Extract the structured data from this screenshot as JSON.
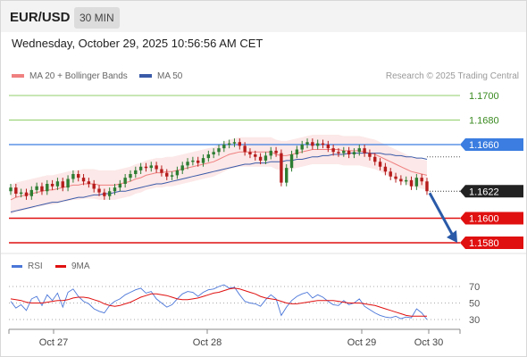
{
  "header": {
    "symbol": "EUR/USD",
    "timeframe": "30 MIN"
  },
  "datetime": "Wednesday, October 29, 2025 10:56:56 AM CET",
  "credit": "Research © 2025 Trading Central",
  "legend": {
    "ma20": "MA 20 + Bollinger Bands",
    "ma50": "MA 50",
    "rsi": "RSI",
    "rsi_ma": "9MA"
  },
  "colors": {
    "ma20": "#f08080",
    "ma50": "#3a5aa8",
    "resistance": "#8fcf6a",
    "pivot": "#3b7de0",
    "support": "#e01010",
    "rsi": "#4a76d8",
    "rsi_ma": "#e01010",
    "candle_up": "#2e7d32",
    "candle_down": "#b71c1c",
    "arrow": "#2a5aa8"
  },
  "chart_data": [
    {
      "type": "line",
      "subtype": "candlestick",
      "x_ticks": [
        "Oct 27",
        "Oct 28",
        "Oct 29",
        "Oct 30"
      ],
      "price_levels": [
        {
          "value": 1.17,
          "label": "1.1700",
          "kind": "resistance"
        },
        {
          "value": 1.168,
          "label": "1.1680",
          "kind": "resistance"
        },
        {
          "value": 1.166,
          "label": "1.1660",
          "kind": "pivot"
        },
        {
          "value": 1.1622,
          "label": "1.1622",
          "kind": "last"
        },
        {
          "value": 1.16,
          "label": "1.1600",
          "kind": "support"
        },
        {
          "value": 1.158,
          "label": "1.1580",
          "kind": "support"
        }
      ],
      "close": [
        1.1625,
        1.162,
        1.1621,
        1.1618,
        1.1623,
        1.1626,
        1.1622,
        1.1628,
        1.1626,
        1.163,
        1.1625,
        1.1632,
        1.1636,
        1.1633,
        1.163,
        1.1628,
        1.1624,
        1.1621,
        1.1618,
        1.1622,
        1.1625,
        1.1628,
        1.1633,
        1.1636,
        1.1639,
        1.1642,
        1.1641,
        1.1643,
        1.164,
        1.1637,
        1.1634,
        1.1635,
        1.1639,
        1.1643,
        1.1646,
        1.1647,
        1.1645,
        1.1649,
        1.1652,
        1.1654,
        1.1657,
        1.166,
        1.1661,
        1.1662,
        1.1659,
        1.1654,
        1.1652,
        1.165,
        1.1647,
        1.1651,
        1.1655,
        1.1653,
        1.1629,
        1.1641,
        1.1652,
        1.1656,
        1.166,
        1.1662,
        1.1659,
        1.1661,
        1.166,
        1.1657,
        1.1654,
        1.1653,
        1.1655,
        1.1652,
        1.1654,
        1.1657,
        1.1653,
        1.165,
        1.1646,
        1.1642,
        1.1638,
        1.1634,
        1.1632,
        1.163,
        1.1631,
        1.1626,
        1.1633,
        1.163,
        1.1622
      ],
      "ma20": [
        1.1615,
        1.1617,
        1.1618,
        1.1619,
        1.162,
        1.1621,
        1.1622,
        1.1623,
        1.1623,
        1.1624,
        1.1625,
        1.1626,
        1.1627,
        1.1627,
        1.1628,
        1.1628,
        1.1628,
        1.1627,
        1.1627,
        1.1627,
        1.1627,
        1.1628,
        1.1629,
        1.163,
        1.1632,
        1.1633,
        1.1635,
        1.1636,
        1.1637,
        1.1637,
        1.1638,
        1.1638,
        1.1639,
        1.164,
        1.1641,
        1.1642,
        1.1643,
        1.1644,
        1.1645,
        1.1646,
        1.1648,
        1.165,
        1.1652,
        1.1653,
        1.1654,
        1.1654,
        1.1654,
        1.1654,
        1.1654,
        1.1654,
        1.1654,
        1.1652,
        1.1651,
        1.1651,
        1.1652,
        1.1653,
        1.1654,
        1.1655,
        1.1656,
        1.1656,
        1.1656,
        1.1656,
        1.1656,
        1.1656,
        1.1655,
        1.1655,
        1.1655,
        1.1655,
        1.1654,
        1.1653,
        1.1652,
        1.165,
        1.1648,
        1.1646,
        1.1644,
        1.1642,
        1.164,
        1.1638,
        1.1637,
        1.1636,
        1.1635
      ],
      "ma50": [
        1.1605,
        1.1606,
        1.1607,
        1.1608,
        1.1609,
        1.161,
        1.1611,
        1.1612,
        1.1613,
        1.1613,
        1.1614,
        1.1615,
        1.1616,
        1.1617,
        1.1617,
        1.1618,
        1.1619,
        1.1619,
        1.162,
        1.162,
        1.1621,
        1.1622,
        1.1622,
        1.1623,
        1.1624,
        1.1625,
        1.1626,
        1.1627,
        1.1628,
        1.1628,
        1.1629,
        1.163,
        1.1631,
        1.1632,
        1.1633,
        1.1634,
        1.1635,
        1.1636,
        1.1637,
        1.1638,
        1.1639,
        1.164,
        1.1641,
        1.1642,
        1.1643,
        1.1644,
        1.1644,
        1.1645,
        1.1645,
        1.1645,
        1.1646,
        1.1646,
        1.1646,
        1.1647,
        1.1647,
        1.1648,
        1.1648,
        1.1649,
        1.165,
        1.165,
        1.1651,
        1.1651,
        1.1652,
        1.1652,
        1.1652,
        1.1653,
        1.1653,
        1.1653,
        1.1653,
        1.1653,
        1.1653,
        1.1653,
        1.1652,
        1.1652,
        1.1651,
        1.1651,
        1.165,
        1.165,
        1.1649,
        1.1649,
        1.1648
      ],
      "bb_width": [
        0.0012,
        0.0012,
        0.0012,
        0.0012,
        0.0012,
        0.0012,
        0.0012,
        0.0012,
        0.0012,
        0.0012,
        0.0012,
        0.0012,
        0.0012,
        0.0012,
        0.0012,
        0.0012,
        0.0012,
        0.0012,
        0.0012,
        0.0012,
        0.0012,
        0.0012,
        0.0012,
        0.0012,
        0.0012,
        0.0012,
        0.0012,
        0.0012,
        0.0012,
        0.0012,
        0.0012,
        0.0012,
        0.0012,
        0.0012,
        0.0012,
        0.0012,
        0.0012,
        0.0012,
        0.0012,
        0.0012,
        0.0012,
        0.0012,
        0.0012,
        0.0012,
        0.0012,
        0.0012,
        0.0012,
        0.0012,
        0.0012,
        0.0012,
        0.0012,
        0.0012,
        0.0012,
        0.0012,
        0.0012,
        0.0012,
        0.0012,
        0.0012,
        0.0012,
        0.0012,
        0.0012,
        0.0012,
        0.0012,
        0.0012,
        0.0012,
        0.0012,
        0.0012,
        0.0012,
        0.0012,
        0.0012,
        0.0012,
        0.0012,
        0.0012,
        0.0012,
        0.0012,
        0.0012,
        0.0012,
        0.0012,
        0.0012,
        0.0012,
        0.0012
      ],
      "ylim": [
        1.1572,
        1.1716
      ],
      "forecast": {
        "from": 1.1622,
        "to": 1.158
      }
    },
    {
      "type": "line",
      "series": [
        {
          "name": "RSI",
          "values": [
            52,
            44,
            48,
            41,
            55,
            58,
            47,
            60,
            53,
            62,
            45,
            63,
            67,
            58,
            52,
            49,
            43,
            40,
            38,
            47,
            52,
            55,
            60,
            63,
            66,
            68,
            62,
            64,
            55,
            50,
            45,
            48,
            55,
            61,
            64,
            63,
            58,
            63,
            66,
            67,
            70,
            72,
            68,
            69,
            60,
            52,
            50,
            49,
            46,
            54,
            60,
            55,
            35,
            45,
            53,
            58,
            61,
            63,
            56,
            60,
            57,
            52,
            48,
            47,
            53,
            48,
            50,
            55,
            46,
            42,
            38,
            35,
            33,
            32,
            34,
            31,
            33,
            32,
            43,
            38,
            30
          ]
        },
        {
          "name": "9MA",
          "values": [
            55,
            54,
            53,
            51,
            50,
            50,
            50,
            51,
            52,
            53,
            53,
            54,
            56,
            57,
            57,
            56,
            54,
            52,
            49,
            47,
            46,
            47,
            49,
            51,
            54,
            57,
            59,
            61,
            61,
            60,
            59,
            57,
            55,
            54,
            54,
            55,
            56,
            58,
            60,
            62,
            63,
            65,
            67,
            68,
            67,
            65,
            63,
            61,
            58,
            56,
            55,
            54,
            52,
            50,
            49,
            49,
            50,
            51,
            52,
            53,
            53,
            53,
            53,
            52,
            51,
            50,
            50,
            50,
            49,
            48,
            47,
            45,
            43,
            41,
            39,
            37,
            35,
            34,
            34,
            34,
            34
          ]
        }
      ],
      "y_ticks": [
        70,
        50,
        30
      ],
      "ylim": [
        20,
        80
      ]
    }
  ]
}
